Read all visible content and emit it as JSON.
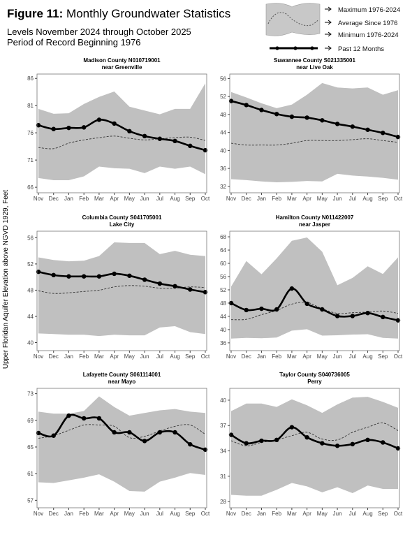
{
  "header": {
    "figure_label": "Figure 11:",
    "title": "Monthly Groundwater Statistics",
    "subtitle_1": "Levels November 2024 through October 2025",
    "subtitle_2": "Period of Record Beginning 1976"
  },
  "legend": {
    "max": "Maximum 1976-2024",
    "avg": "Average Since 1976",
    "min": "Minimum 1976-2024",
    "past": "Past 12 Months"
  },
  "ylabel": "Upper Floridan Aquifer Elevation above NGVD 1929, Feet",
  "colors": {
    "band": "#c0c0c0",
    "past": "#000000",
    "avg": "#333333"
  },
  "chart_data": [
    {
      "type": "area+line",
      "title": "Madison County N010719001",
      "subtitle": "near Greenville",
      "categories": [
        "Nov",
        "Dec",
        "Jan",
        "Feb",
        "Mar",
        "Apr",
        "May",
        "Jun",
        "Jul",
        "Aug",
        "Sep",
        "Oct"
      ],
      "ylim": [
        65.5,
        86.8
      ],
      "yticks": [
        66,
        71,
        76,
        81,
        86
      ],
      "max": [
        80.4,
        79.5,
        79.6,
        81.3,
        82.6,
        83.6,
        80.8,
        80.1,
        79.4,
        80.4,
        80.4,
        85.1
      ],
      "avg": [
        73.3,
        73.1,
        74.1,
        74.7,
        75.1,
        75.4,
        75.0,
        74.7,
        74.9,
        75.1,
        75.2,
        74.6
      ],
      "min": [
        67.7,
        67.3,
        67.3,
        68.0,
        69.8,
        69.5,
        69.4,
        68.6,
        69.8,
        69.4,
        69.8,
        68.4
      ],
      "past": [
        77.4,
        76.7,
        76.9,
        77.0,
        78.4,
        77.7,
        76.3,
        75.4,
        74.9,
        74.5,
        73.6,
        72.8
      ]
    },
    {
      "type": "area+line",
      "title": "Suwannee County S021335001",
      "subtitle": "near Live Oak",
      "categories": [
        "Nov",
        "Dec",
        "Jan",
        "Feb",
        "Mar",
        "Apr",
        "May",
        "Jun",
        "Jul",
        "Aug",
        "Sep",
        "Oct"
      ],
      "ylim": [
        31.2,
        57
      ],
      "yticks": [
        32,
        36,
        40,
        44,
        48,
        52,
        56
      ],
      "max": [
        53.0,
        51.8,
        50.5,
        49.4,
        50.2,
        52.4,
        55.0,
        54.0,
        53.8,
        54.0,
        52.4,
        53.4
      ],
      "avg": [
        41.6,
        41.2,
        41.2,
        41.2,
        41.6,
        42.2,
        42.2,
        42.2,
        42.4,
        42.6,
        42.2,
        41.8
      ],
      "min": [
        33.6,
        33.4,
        33.1,
        32.9,
        33.0,
        33.2,
        33.1,
        34.8,
        34.4,
        34.2,
        33.9,
        33.5
      ],
      "past": [
        51.0,
        50.1,
        49.0,
        48.1,
        47.5,
        47.3,
        46.7,
        45.9,
        45.3,
        44.6,
        43.9,
        43.0
      ]
    },
    {
      "type": "area+line",
      "title": "Columbia County S041705001",
      "subtitle": "Lake City",
      "categories": [
        "Nov",
        "Dec",
        "Jan",
        "Feb",
        "Mar",
        "Apr",
        "May",
        "Jun",
        "Jul",
        "Aug",
        "Sep",
        "Oct"
      ],
      "ylim": [
        39.2,
        57
      ],
      "yticks": [
        40,
        44,
        48,
        52,
        56
      ],
      "max": [
        53.0,
        52.6,
        52.4,
        52.5,
        53.2,
        55.3,
        55.2,
        55.2,
        53.5,
        54.0,
        53.4,
        53.2
      ],
      "avg": [
        47.9,
        47.5,
        47.6,
        47.8,
        48.0,
        48.5,
        48.7,
        48.6,
        48.3,
        48.3,
        48.5,
        48.4
      ],
      "min": [
        41.4,
        41.3,
        41.2,
        41.2,
        41.0,
        41.2,
        41.1,
        41.1,
        42.3,
        42.5,
        41.6,
        41.3
      ],
      "past": [
        50.8,
        50.3,
        50.1,
        50.1,
        50.1,
        50.5,
        50.2,
        49.6,
        49.0,
        48.6,
        48.1,
        47.7
      ]
    },
    {
      "type": "area+line",
      "title": "Hamilton County N011422007",
      "subtitle": "near Jasper",
      "categories": [
        "Nov",
        "Dec",
        "Jan",
        "Feb",
        "Mar",
        "Apr",
        "May",
        "Jun",
        "Jul",
        "Aug",
        "Sep",
        "Oct"
      ],
      "ylim": [
        34.5,
        69.7
      ],
      "yticks": [
        36,
        40,
        44,
        48,
        52,
        56,
        60,
        64,
        68
      ],
      "max": [
        53.0,
        60.7,
        56.7,
        61.5,
        66.8,
        67.8,
        63.5,
        53.4,
        55.6,
        59.1,
        56.8,
        61.8
      ],
      "avg": [
        43.0,
        43.1,
        44.5,
        45.8,
        47.7,
        48.2,
        46.3,
        44.9,
        45.1,
        45.3,
        45.6,
        44.9
      ],
      "min": [
        37.3,
        37.5,
        37.4,
        37.6,
        39.7,
        40.1,
        38.2,
        38.3,
        38.5,
        38.6,
        37.5,
        37.3
      ],
      "past": [
        48.0,
        45.9,
        46.3,
        46.1,
        52.4,
        47.8,
        46.1,
        44.1,
        44.1,
        45.0,
        43.8,
        42.8
      ]
    },
    {
      "type": "area+line",
      "title": "Lafayette County S061114001",
      "subtitle": "near Mayo",
      "categories": [
        "Nov",
        "Dec",
        "Jan",
        "Feb",
        "Mar",
        "Apr",
        "May",
        "Jun",
        "Jul",
        "Aug",
        "Sep",
        "Oct"
      ],
      "ylim": [
        56.3,
        73.8
      ],
      "yticks": [
        57,
        61,
        65,
        69,
        73
      ],
      "max": [
        70.3,
        70.0,
        70.0,
        70.4,
        72.6,
        71.0,
        69.7,
        70.1,
        70.5,
        70.7,
        70.3,
        70.1
      ],
      "avg": [
        66.3,
        66.7,
        67.5,
        68.3,
        68.3,
        68.1,
        66.4,
        66.6,
        67.4,
        68.1,
        68.3,
        66.9
      ],
      "min": [
        59.7,
        59.6,
        60.0,
        60.4,
        60.9,
        59.8,
        58.4,
        58.3,
        59.8,
        60.4,
        61.1,
        60.8
      ],
      "past": [
        67.1,
        66.7,
        69.7,
        69.3,
        69.3,
        67.2,
        67.2,
        65.9,
        67.2,
        67.2,
        65.4,
        64.6
      ]
    },
    {
      "type": "area+line",
      "title": "Taylor County S040736005",
      "subtitle": "Perry",
      "categories": [
        "Nov",
        "Dec",
        "Jan",
        "Feb",
        "Mar",
        "Apr",
        "May",
        "Jun",
        "Jul",
        "Aug",
        "Sep",
        "Oct"
      ],
      "ylim": [
        27.6,
        41.4
      ],
      "yticks": [
        28,
        31,
        34,
        37,
        40
      ],
      "max": [
        38.7,
        39.6,
        39.6,
        39.2,
        40.1,
        39.4,
        38.5,
        39.5,
        40.3,
        40.4,
        39.8,
        39.1
      ],
      "avg": [
        35.2,
        34.6,
        35.0,
        35.3,
        35.8,
        36.2,
        35.4,
        35.3,
        36.2,
        36.8,
        37.3,
        36.4
      ],
      "min": [
        28.8,
        28.7,
        28.7,
        29.4,
        30.2,
        29.8,
        29.1,
        29.7,
        29.0,
        29.9,
        29.5,
        29.5
      ],
      "past": [
        35.9,
        34.9,
        35.2,
        35.3,
        36.8,
        35.6,
        34.9,
        34.6,
        34.8,
        35.3,
        35.0,
        34.3
      ]
    }
  ]
}
